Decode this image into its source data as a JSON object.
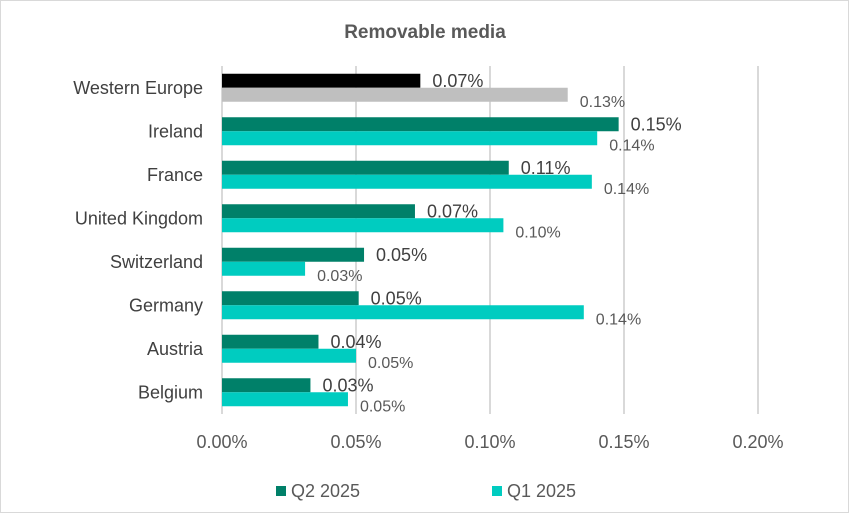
{
  "chart_data": {
    "type": "bar",
    "orientation": "horizontal",
    "title": "Removable media",
    "xlabel": "",
    "ylabel": "",
    "xlim": [
      0,
      0.2
    ],
    "x_ticks": [
      0,
      0.05,
      0.1,
      0.15,
      0.2
    ],
    "x_tick_labels": [
      "0.00%",
      "0.05%",
      "0.10%",
      "0.15%",
      "0.20%"
    ],
    "grid": "vertical",
    "legend_position": "bottom",
    "categories": [
      "Western Europe",
      "Ireland",
      "France",
      "United Kingdom",
      "Switzerland",
      "Germany",
      "Austria",
      "Belgium"
    ],
    "series": [
      {
        "name": "Q2 2025",
        "color": "#008069",
        "highlight_color": "#000000",
        "values": [
          0.074,
          0.148,
          0.107,
          0.072,
          0.053,
          0.051,
          0.036,
          0.033
        ],
        "labels": [
          "0.07%",
          "0.15%",
          "0.11%",
          "0.07%",
          "0.05%",
          "0.05%",
          "0.04%",
          "0.03%"
        ]
      },
      {
        "name": "Q1 2025",
        "color": "#00CCC0",
        "highlight_color": "#BFBFBF",
        "values": [
          0.129,
          0.14,
          0.138,
          0.105,
          0.031,
          0.135,
          0.05,
          0.047
        ],
        "labels": [
          "0.13%",
          "0.14%",
          "0.14%",
          "0.10%",
          "0.03%",
          "0.14%",
          "0.05%",
          "0.05%"
        ]
      }
    ],
    "highlighted_category": "Western Europe"
  }
}
